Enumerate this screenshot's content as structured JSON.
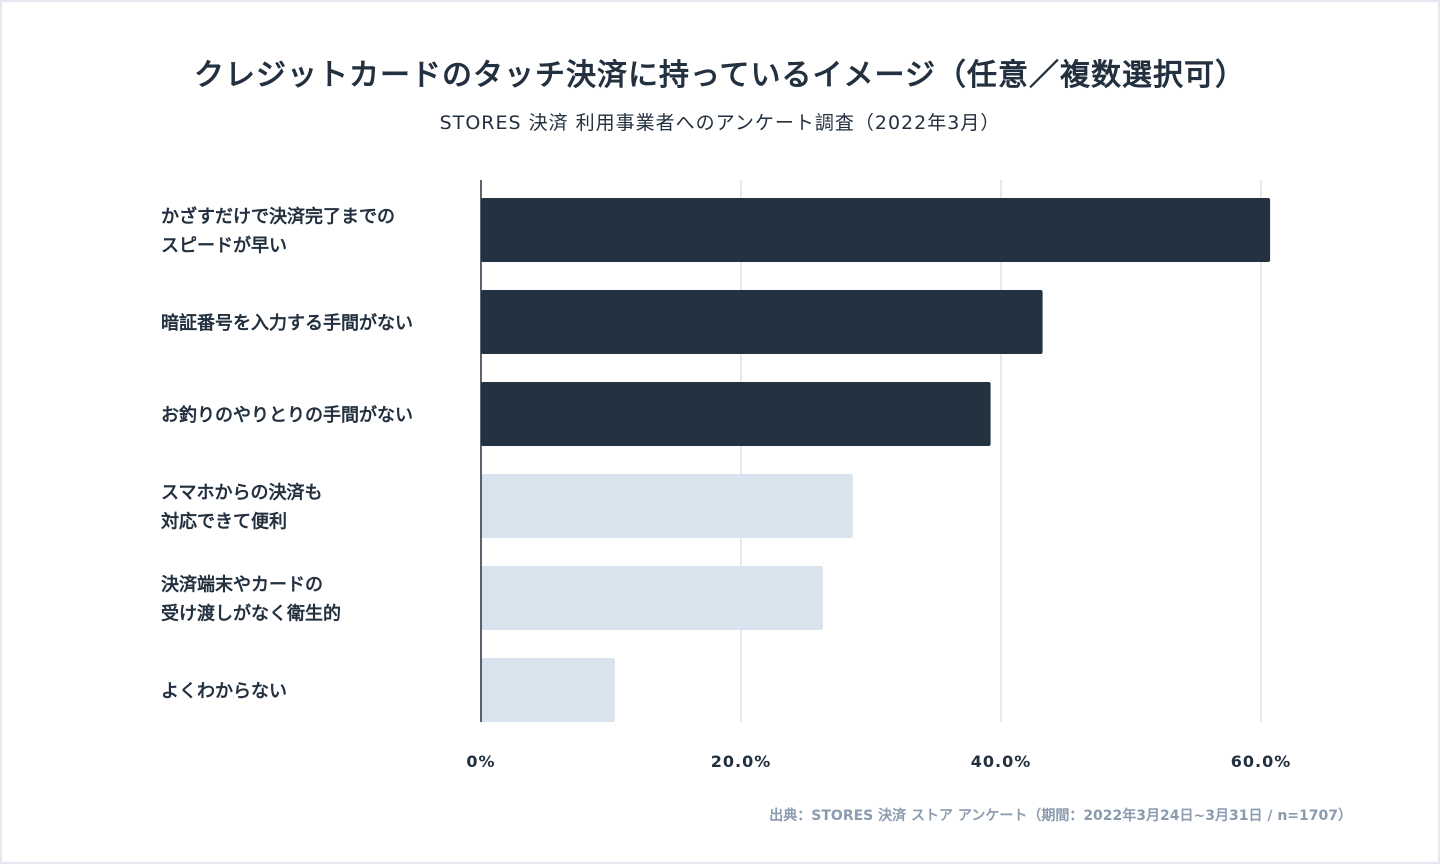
{
  "chart_data": {
    "type": "bar",
    "orientation": "horizontal",
    "title": "クレジットカードのタッチ決済に持っているイメージ（任意／複数選択可）",
    "subtitle": "STORES 決済 利用事業者へのアンケート調査（2022年3月）",
    "categories": [
      [
        "かざすだけで決済完了までの",
        "スピードが早い"
      ],
      [
        "暗証番号を入力する手間がない"
      ],
      [
        "お釣りのやりとりの手間がない"
      ],
      [
        "スマホからの決済も",
        "対応できて便利"
      ],
      [
        "決済端末やカードの",
        "受け渡しがなく衛生的"
      ],
      [
        "よくわからない"
      ]
    ],
    "values": [
      60.7,
      43.2,
      39.2,
      28.6,
      26.3,
      10.3
    ],
    "highlight": [
      true,
      true,
      true,
      false,
      false,
      false
    ],
    "colors": {
      "highlight": "#233141",
      "normal": "#d9e3ee",
      "grid": "#dde4ec",
      "axis": "#22303f"
    },
    "xlim": [
      0,
      60
    ],
    "xticks": [
      0,
      20,
      40,
      60
    ],
    "xtick_labels": [
      "0%",
      "20.0%",
      "40.0%",
      "60.0%"
    ],
    "grid": true,
    "legend": "none"
  },
  "source": "出典：STORES 決済 ストア アンケート（期間：2022年3月24日~3月31日 / n=1707）"
}
